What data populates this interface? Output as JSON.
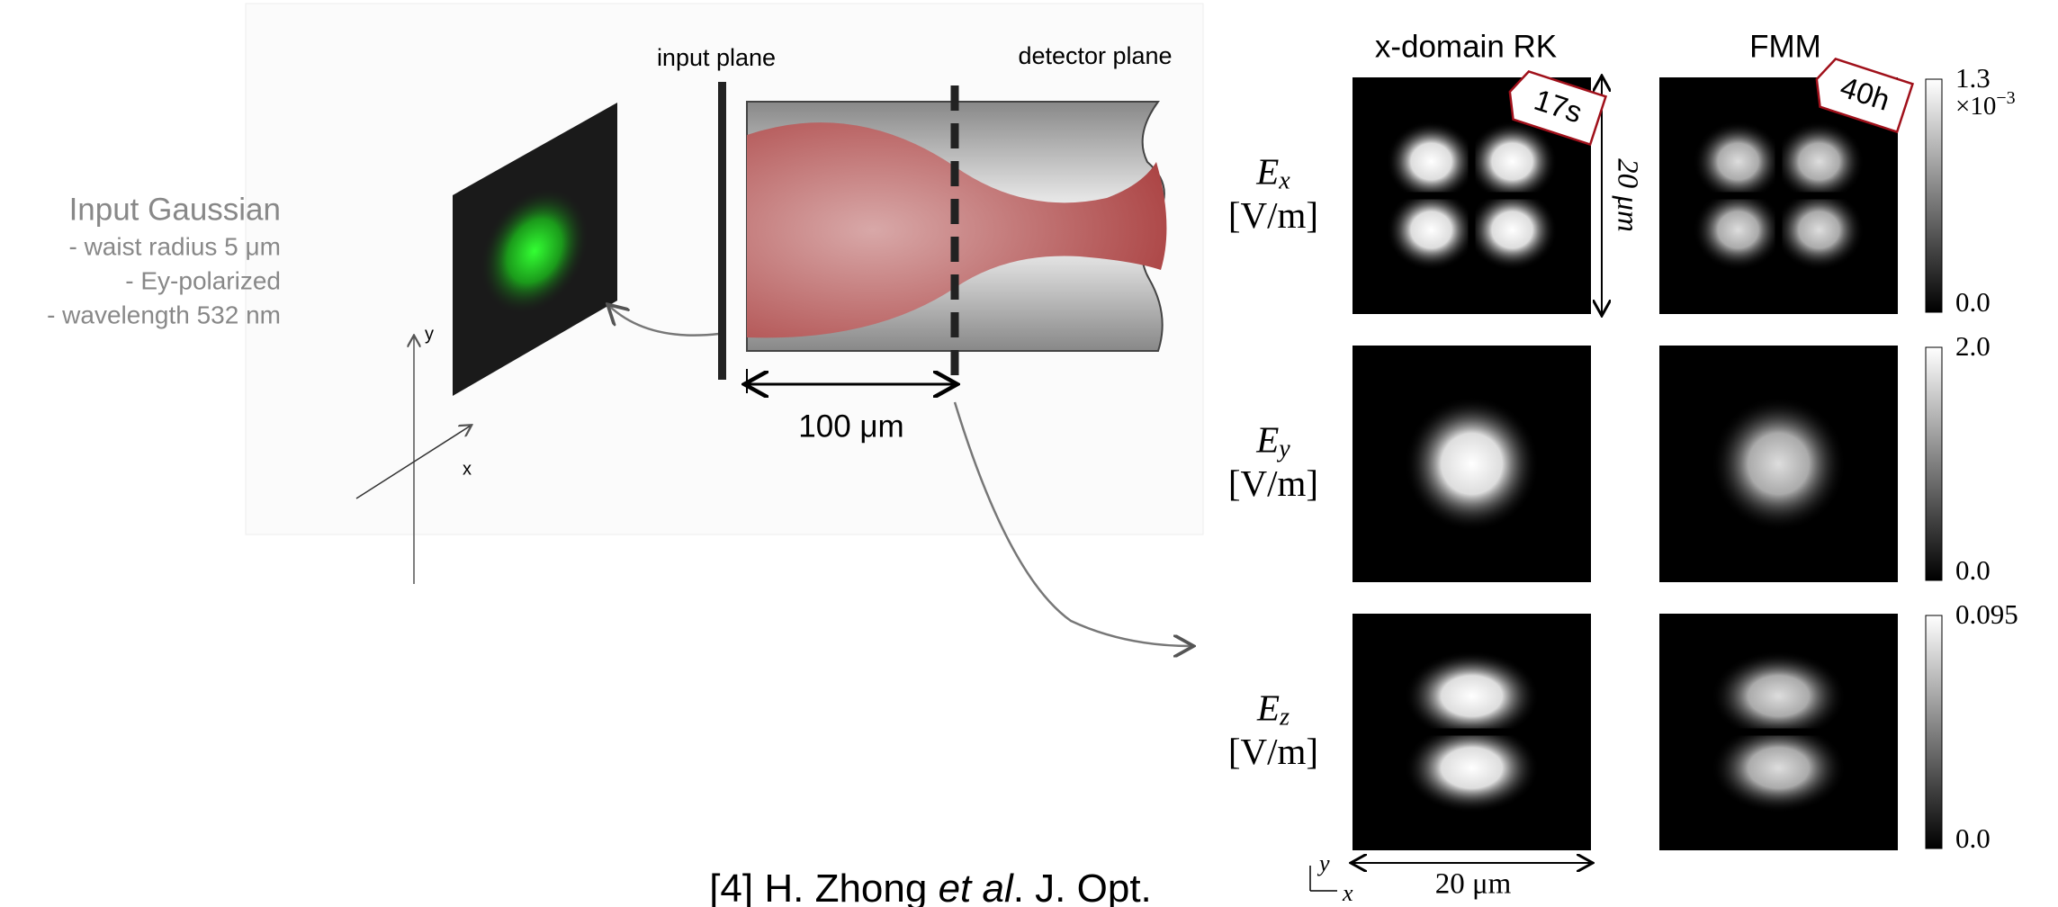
{
  "left_panel": {
    "title": "Input Gaussian",
    "details": [
      "- waist radius 5 μm",
      "- Ey-polarized",
      "- wavelength 532 nm"
    ],
    "axes": {
      "y": "y",
      "x": "x"
    }
  },
  "setup": {
    "input_plane": "input plane",
    "detector_plane": "detector plane",
    "length": "100 μm"
  },
  "results": {
    "columns": [
      "x-domain RK",
      "FMM"
    ],
    "times": [
      "17s",
      "40h"
    ],
    "rows": [
      {
        "field": "E",
        "sub": "x",
        "unit": "[V/m]",
        "colorbar_max": "1.3",
        "colorbar_min": "0.0",
        "scale": {
          "base": "×10",
          "exponent": "−3"
        }
      },
      {
        "field": "E",
        "sub": "y",
        "unit": "[V/m]",
        "colorbar_max": "2.0",
        "colorbar_min": "0.0"
      },
      {
        "field": "E",
        "sub": "z",
        "unit": "[V/m]",
        "colorbar_max": "0.095",
        "colorbar_min": "0.0"
      }
    ],
    "height_scale": "20 μm",
    "width_scale": "20 μm",
    "axes": {
      "y": "y",
      "x": "x"
    }
  },
  "citation": {
    "prefix": "[4] H. Zhong ",
    "italic": "et al",
    "suffix": ". J. Opt."
  }
}
